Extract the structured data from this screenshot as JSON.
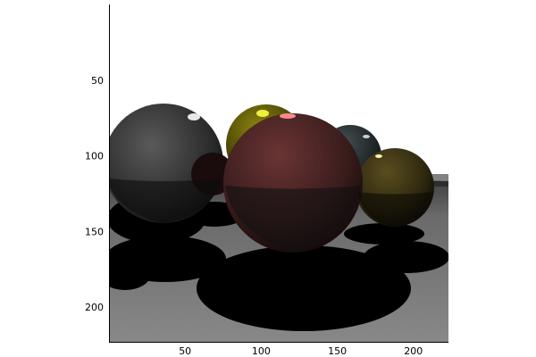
{
  "chart_data": {
    "type": "image",
    "title": "",
    "xlabel": "",
    "ylabel": "",
    "xlim": [
      0,
      223
    ],
    "ylim": [
      223,
      0
    ],
    "x_ticks": [
      50,
      100,
      150,
      200
    ],
    "y_ticks": [
      50,
      100,
      150,
      200
    ],
    "grid": false,
    "image_content": {
      "spheres": [
        {
          "color": "#3a3a3a",
          "highlight": "#e8e8e8"
        },
        {
          "color": "#6e6a08",
          "highlight": "#f2ef3c"
        },
        {
          "color": "#2a3134",
          "highlight": "#c8d0d2"
        },
        {
          "color": "#4a2424",
          "highlight": "#ff8a8a"
        },
        {
          "color": "#3c3315",
          "highlight": "#fff2b0"
        }
      ],
      "floor_color": "#7a7a7a",
      "shadow_color": "#000000",
      "background_color": "#ffffff"
    }
  }
}
